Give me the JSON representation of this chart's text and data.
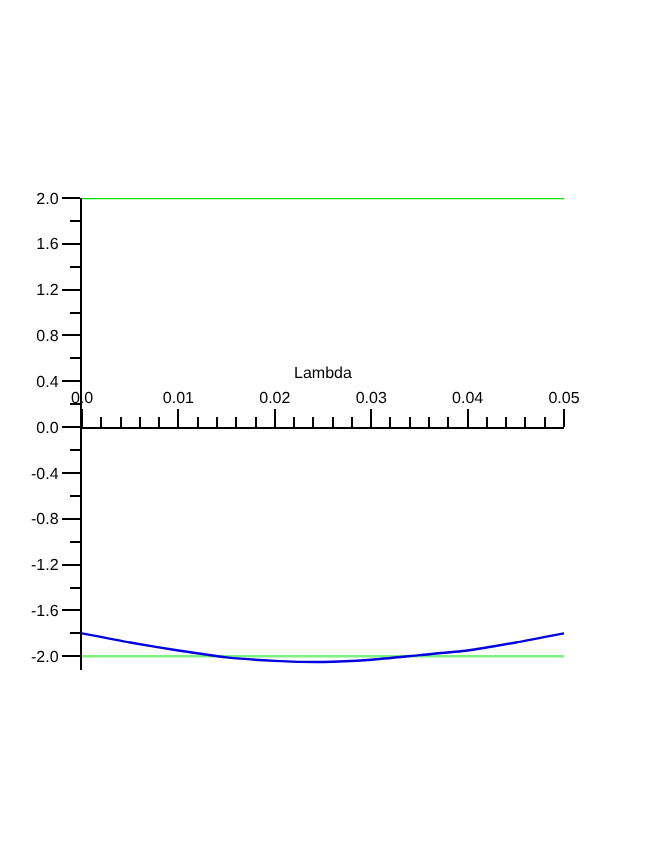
{
  "chart_data": {
    "type": "line",
    "xlabel": "Lambda",
    "series": [
      {
        "color": "#00e000",
        "x": [
          0,
          0.05
        ],
        "values": [
          2.0,
          2.0
        ]
      },
      {
        "color": "#80f080",
        "x": [
          0,
          0.05
        ],
        "values": [
          -2.0,
          -2.0
        ]
      },
      {
        "color": "#0000e0",
        "x": [
          0,
          0.005,
          0.01,
          0.015,
          0.02,
          0.025,
          0.03,
          0.035,
          0.04,
          0.045,
          0.05
        ],
        "values": [
          -1.8,
          -1.88,
          -1.95,
          -2.01,
          -2.04,
          -2.05,
          -2.03,
          -1.99,
          -1.95,
          -1.88,
          -1.8
        ]
      }
    ],
    "xlim": [
      0,
      0.05
    ],
    "ylim": [
      -2.12,
      2.0
    ],
    "xticks": [
      {
        "value": 0,
        "label": "0.0"
      },
      0.01,
      0.02,
      0.03,
      0.04,
      0.05,
      {
        "value": 0.002,
        "label": null
      },
      {
        "value": 0.004,
        "label": null
      },
      {
        "value": 0.006,
        "label": null
      },
      {
        "value": 0.008,
        "label": null
      },
      {
        "value": 0.012,
        "label": null
      },
      {
        "value": 0.014,
        "label": null
      },
      {
        "value": 0.016,
        "label": null
      },
      {
        "value": 0.018,
        "label": null
      },
      {
        "value": 0.022,
        "label": null
      },
      {
        "value": 0.024,
        "label": null
      },
      {
        "value": 0.026,
        "label": null
      },
      {
        "value": 0.028,
        "label": null
      },
      {
        "value": 0.032,
        "label": null
      },
      {
        "value": 0.034,
        "label": null
      },
      {
        "value": 0.036,
        "label": null
      },
      {
        "value": 0.038,
        "label": null
      },
      {
        "value": 0.042,
        "label": null
      },
      {
        "value": 0.044,
        "label": null
      },
      {
        "value": 0.046,
        "label": null
      },
      {
        "value": 0.048,
        "label": null
      }
    ],
    "yticks": [
      {
        "value": 2.0,
        "label": "2.0"
      },
      1.6,
      1.2,
      0.8,
      0.4,
      {
        "value": 0,
        "label": "0.0"
      },
      -0.4,
      -0.8,
      -1.2,
      -1.6,
      {
        "value": -2.0,
        "label": "-2.0"
      },
      {
        "value": 1.8,
        "label": null
      },
      {
        "value": 1.4,
        "label": null
      },
      {
        "value": 1.0,
        "label": null
      },
      {
        "value": 0.6,
        "label": null
      },
      {
        "value": 0.2,
        "label": null
      },
      {
        "value": -0.2,
        "label": null
      },
      {
        "value": -0.6,
        "label": null
      },
      {
        "value": -1.0,
        "label": null
      },
      {
        "value": -1.4,
        "label": null
      },
      {
        "value": -1.8,
        "label": null
      }
    ],
    "marker": "none",
    "line_style": "solid"
  }
}
